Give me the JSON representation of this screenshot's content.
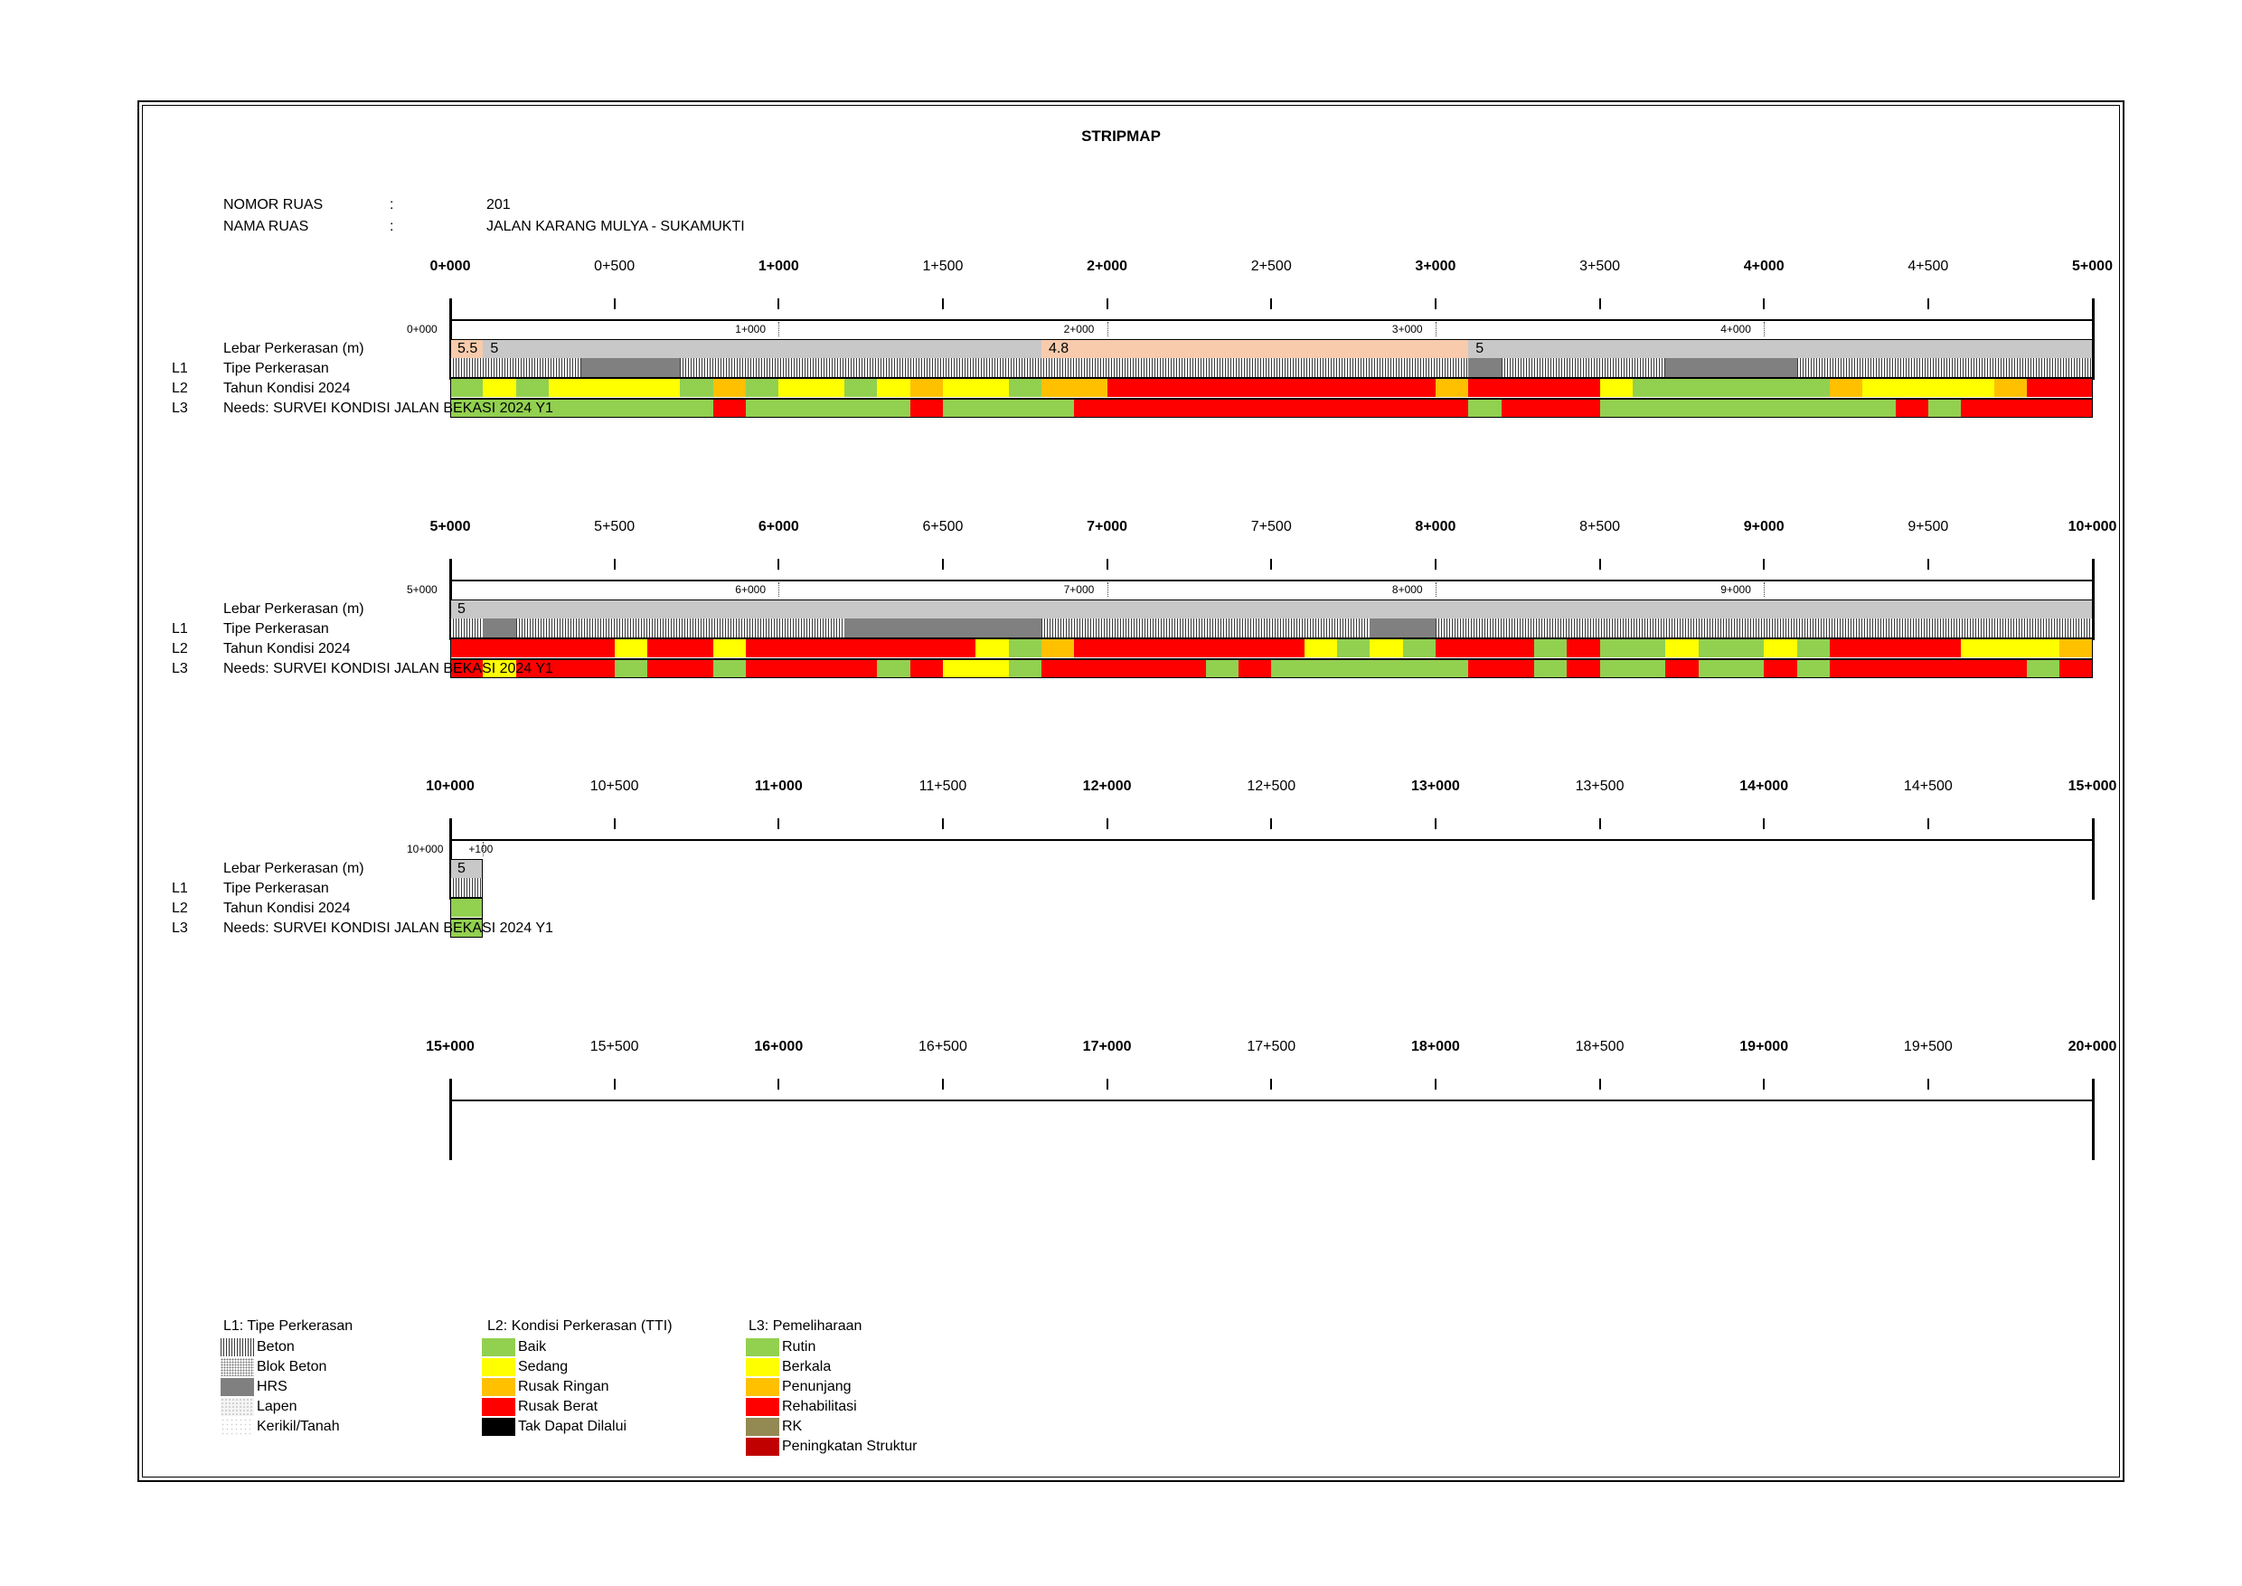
{
  "title": "STRIPMAP",
  "info": {
    "nomor_label": "NOMOR RUAS",
    "nomor_sep": ":",
    "nomor_value": "201",
    "nama_label": "NAMA RUAS",
    "nama_sep": ":",
    "nama_value": "JALAN KARANG MULYA - SUKAMUKTI"
  },
  "row_labels": {
    "lebar": "Lebar Perkerasan (m)",
    "l1_code": "L1",
    "l1": "Tipe Perkerasan",
    "l2_code": "L2",
    "l2": "Tahun Kondisi 2024",
    "l3_code": "L3",
    "l3": "Needs: SURVEI KONDISI JALAN BEKASI 2024 Y1"
  },
  "colors": {
    "baik": "#92d050",
    "sedang": "#ffff00",
    "rusak_ringan": "#ffc000",
    "rusak_berat": "#ff0000",
    "tak_dapat": "#000000",
    "rk": "#938953",
    "peningkatan": "#c00000",
    "width_grey": "#c8c8c8",
    "width_peach": "#f8cbad",
    "hrs": "#808080"
  },
  "chart_data": {
    "type": "stripmap",
    "unit": "m",
    "panels": [
      {
        "major_labels": [
          "0+000",
          "0+500",
          "1+000",
          "1+500",
          "2+000",
          "2+500",
          "3+000",
          "3+500",
          "4+000",
          "4+500",
          "5+000"
        ],
        "minor_labels": [
          {
            "km": 0,
            "text": "0+000"
          },
          {
            "km": 1,
            "text": "1+000"
          },
          {
            "km": 2,
            "text": "2+000"
          },
          {
            "km": 3,
            "text": "3+000"
          },
          {
            "km": 4,
            "text": "4+000"
          }
        ],
        "width": [
          {
            "s": 0,
            "e": 0.1,
            "v": "5.5",
            "c": "peach"
          },
          {
            "s": 0.1,
            "e": 1.8,
            "v": "5",
            "c": "grey"
          },
          {
            "s": 1.8,
            "e": 3.1,
            "v": "4.8",
            "c": "peach"
          },
          {
            "s": 3.1,
            "e": 5.0,
            "v": "5",
            "c": "grey"
          }
        ],
        "l1": [
          {
            "s": 0,
            "e": 0.4,
            "t": "beton"
          },
          {
            "s": 0.4,
            "e": 0.7,
            "t": "hrs"
          },
          {
            "s": 0.7,
            "e": 3.1,
            "t": "beton"
          },
          {
            "s": 3.1,
            "e": 3.2,
            "t": "hrs"
          },
          {
            "s": 3.2,
            "e": 3.7,
            "t": "beton"
          },
          {
            "s": 3.7,
            "e": 4.1,
            "t": "hrs"
          },
          {
            "s": 4.1,
            "e": 5.0,
            "t": "beton"
          }
        ],
        "l2": [
          {
            "s": 0,
            "e": 0.1,
            "c": "baik"
          },
          {
            "s": 0.1,
            "e": 0.2,
            "c": "sedang"
          },
          {
            "s": 0.2,
            "e": 0.3,
            "c": "baik"
          },
          {
            "s": 0.3,
            "e": 0.7,
            "c": "sedang"
          },
          {
            "s": 0.7,
            "e": 0.8,
            "c": "baik"
          },
          {
            "s": 0.8,
            "e": 0.9,
            "c": "rusak_ringan"
          },
          {
            "s": 0.9,
            "e": 1.0,
            "c": "baik"
          },
          {
            "s": 1.0,
            "e": 1.2,
            "c": "sedang"
          },
          {
            "s": 1.2,
            "e": 1.3,
            "c": "baik"
          },
          {
            "s": 1.3,
            "e": 1.4,
            "c": "sedang"
          },
          {
            "s": 1.4,
            "e": 1.5,
            "c": "rusak_ringan"
          },
          {
            "s": 1.5,
            "e": 1.7,
            "c": "sedang"
          },
          {
            "s": 1.7,
            "e": 1.8,
            "c": "baik"
          },
          {
            "s": 1.8,
            "e": 2.0,
            "c": "rusak_ringan"
          },
          {
            "s": 2.0,
            "e": 3.0,
            "c": "rusak_berat"
          },
          {
            "s": 3.0,
            "e": 3.1,
            "c": "rusak_ringan"
          },
          {
            "s": 3.1,
            "e": 3.5,
            "c": "rusak_berat"
          },
          {
            "s": 3.5,
            "e": 3.6,
            "c": "sedang"
          },
          {
            "s": 3.6,
            "e": 4.2,
            "c": "baik"
          },
          {
            "s": 4.2,
            "e": 4.3,
            "c": "rusak_ringan"
          },
          {
            "s": 4.3,
            "e": 4.7,
            "c": "sedang"
          },
          {
            "s": 4.7,
            "e": 4.8,
            "c": "rusak_ringan"
          },
          {
            "s": 4.8,
            "e": 5.0,
            "c": "rusak_berat"
          }
        ],
        "l3": [
          {
            "s": 0,
            "e": 0.8,
            "c": "baik"
          },
          {
            "s": 0.8,
            "e": 0.9,
            "c": "rusak_berat"
          },
          {
            "s": 0.9,
            "e": 1.4,
            "c": "baik"
          },
          {
            "s": 1.4,
            "e": 1.5,
            "c": "rusak_berat"
          },
          {
            "s": 1.5,
            "e": 1.9,
            "c": "baik"
          },
          {
            "s": 1.9,
            "e": 3.1,
            "c": "rusak_berat"
          },
          {
            "s": 3.1,
            "e": 3.2,
            "c": "baik"
          },
          {
            "s": 3.2,
            "e": 3.5,
            "c": "rusak_berat"
          },
          {
            "s": 3.5,
            "e": 4.4,
            "c": "baik"
          },
          {
            "s": 4.4,
            "e": 4.5,
            "c": "rusak_berat"
          },
          {
            "s": 4.5,
            "e": 4.6,
            "c": "baik"
          },
          {
            "s": 4.6,
            "e": 5.0,
            "c": "rusak_berat"
          }
        ]
      },
      {
        "major_labels": [
          "5+000",
          "5+500",
          "6+000",
          "6+500",
          "7+000",
          "7+500",
          "8+000",
          "8+500",
          "9+000",
          "9+500",
          "10+000"
        ],
        "minor_labels": [
          {
            "km": 0,
            "text": "5+000"
          },
          {
            "km": 1,
            "text": "6+000"
          },
          {
            "km": 2,
            "text": "7+000"
          },
          {
            "km": 3,
            "text": "8+000"
          },
          {
            "km": 4,
            "text": "9+000"
          }
        ],
        "width": [
          {
            "s": 0,
            "e": 5.0,
            "v": "5",
            "c": "grey"
          }
        ],
        "l1": [
          {
            "s": 0,
            "e": 0.1,
            "t": "beton"
          },
          {
            "s": 0.1,
            "e": 0.2,
            "t": "hrs"
          },
          {
            "s": 0.2,
            "e": 1.2,
            "t": "beton"
          },
          {
            "s": 1.2,
            "e": 1.8,
            "t": "hrs"
          },
          {
            "s": 1.8,
            "e": 2.8,
            "t": "beton"
          },
          {
            "s": 2.8,
            "e": 3.0,
            "t": "hrs"
          },
          {
            "s": 3.0,
            "e": 5.0,
            "t": "beton"
          }
        ],
        "l2": [
          {
            "s": 0,
            "e": 0.5,
            "c": "rusak_berat"
          },
          {
            "s": 0.5,
            "e": 0.6,
            "c": "sedang"
          },
          {
            "s": 0.6,
            "e": 0.8,
            "c": "rusak_berat"
          },
          {
            "s": 0.8,
            "e": 0.9,
            "c": "sedang"
          },
          {
            "s": 0.9,
            "e": 1.6,
            "c": "rusak_berat"
          },
          {
            "s": 1.6,
            "e": 1.7,
            "c": "sedang"
          },
          {
            "s": 1.7,
            "e": 1.8,
            "c": "baik"
          },
          {
            "s": 1.8,
            "e": 1.9,
            "c": "rusak_ringan"
          },
          {
            "s": 1.9,
            "e": 2.6,
            "c": "rusak_berat"
          },
          {
            "s": 2.6,
            "e": 2.7,
            "c": "sedang"
          },
          {
            "s": 2.7,
            "e": 2.8,
            "c": "baik"
          },
          {
            "s": 2.8,
            "e": 2.9,
            "c": "sedang"
          },
          {
            "s": 2.9,
            "e": 3.0,
            "c": "baik"
          },
          {
            "s": 3.0,
            "e": 3.3,
            "c": "rusak_berat"
          },
          {
            "s": 3.3,
            "e": 3.4,
            "c": "baik"
          },
          {
            "s": 3.4,
            "e": 3.5,
            "c": "rusak_berat"
          },
          {
            "s": 3.5,
            "e": 3.7,
            "c": "baik"
          },
          {
            "s": 3.7,
            "e": 3.8,
            "c": "sedang"
          },
          {
            "s": 3.8,
            "e": 4.0,
            "c": "baik"
          },
          {
            "s": 4.0,
            "e": 4.1,
            "c": "sedang"
          },
          {
            "s": 4.1,
            "e": 4.2,
            "c": "baik"
          },
          {
            "s": 4.2,
            "e": 4.6,
            "c": "rusak_berat"
          },
          {
            "s": 4.6,
            "e": 4.9,
            "c": "sedang"
          },
          {
            "s": 4.9,
            "e": 5.0,
            "c": "rusak_ringan"
          }
        ],
        "l3": [
          {
            "s": 0,
            "e": 0.1,
            "c": "rusak_berat"
          },
          {
            "s": 0.1,
            "e": 0.2,
            "c": "sedang"
          },
          {
            "s": 0.2,
            "e": 0.5,
            "c": "rusak_berat"
          },
          {
            "s": 0.5,
            "e": 0.6,
            "c": "baik"
          },
          {
            "s": 0.6,
            "e": 0.8,
            "c": "rusak_berat"
          },
          {
            "s": 0.8,
            "e": 0.9,
            "c": "baik"
          },
          {
            "s": 0.9,
            "e": 1.3,
            "c": "rusak_berat"
          },
          {
            "s": 1.3,
            "e": 1.4,
            "c": "baik"
          },
          {
            "s": 1.4,
            "e": 1.5,
            "c": "rusak_berat"
          },
          {
            "s": 1.5,
            "e": 1.7,
            "c": "sedang"
          },
          {
            "s": 1.7,
            "e": 1.8,
            "c": "baik"
          },
          {
            "s": 1.8,
            "e": 2.3,
            "c": "rusak_berat"
          },
          {
            "s": 2.3,
            "e": 2.4,
            "c": "baik"
          },
          {
            "s": 2.4,
            "e": 2.5,
            "c": "rusak_berat"
          },
          {
            "s": 2.5,
            "e": 3.1,
            "c": "baik"
          },
          {
            "s": 3.1,
            "e": 3.3,
            "c": "rusak_berat"
          },
          {
            "s": 3.3,
            "e": 3.4,
            "c": "baik"
          },
          {
            "s": 3.4,
            "e": 3.5,
            "c": "rusak_berat"
          },
          {
            "s": 3.5,
            "e": 3.7,
            "c": "baik"
          },
          {
            "s": 3.7,
            "e": 3.8,
            "c": "rusak_berat"
          },
          {
            "s": 3.8,
            "e": 4.0,
            "c": "baik"
          },
          {
            "s": 4.0,
            "e": 4.1,
            "c": "rusak_berat"
          },
          {
            "s": 4.1,
            "e": 4.2,
            "c": "baik"
          },
          {
            "s": 4.2,
            "e": 4.8,
            "c": "rusak_berat"
          },
          {
            "s": 4.8,
            "e": 4.9,
            "c": "baik"
          },
          {
            "s": 4.9,
            "e": 5.0,
            "c": "rusak_berat"
          }
        ]
      },
      {
        "major_labels": [
          "10+000",
          "10+500",
          "11+000",
          "11+500",
          "12+000",
          "12+500",
          "13+000",
          "13+500",
          "14+000",
          "14+500",
          "15+000"
        ],
        "minor_labels": [
          {
            "km": 0,
            "text": "10+000"
          },
          {
            "km": 0.1,
            "text": "+100"
          }
        ],
        "width": [
          {
            "s": 0,
            "e": 0.1,
            "v": "5",
            "c": "grey"
          }
        ],
        "l1": [
          {
            "s": 0,
            "e": 0.1,
            "t": "beton"
          }
        ],
        "l2": [
          {
            "s": 0,
            "e": 0.1,
            "c": "baik"
          }
        ],
        "l3": [
          {
            "s": 0,
            "e": 0.1,
            "c": "baik"
          }
        ]
      },
      {
        "major_labels": [
          "15+000",
          "15+500",
          "16+000",
          "16+500",
          "17+000",
          "17+500",
          "18+000",
          "18+500",
          "19+000",
          "19+500",
          "20+000"
        ],
        "minor_labels": [],
        "width": [],
        "l1": [],
        "l2": [],
        "l3": []
      }
    ]
  },
  "legend": {
    "l1": {
      "title": "L1: Tipe Perkerasan",
      "items": [
        {
          "label": "Beton",
          "pattern": "beton"
        },
        {
          "label": "Blok Beton",
          "pattern": "blok"
        },
        {
          "label": "HRS",
          "pattern": "hrs"
        },
        {
          "label": "Lapen",
          "pattern": "lapen"
        },
        {
          "label": "Kerikil/Tanah",
          "pattern": "kerikil"
        }
      ]
    },
    "l2": {
      "title": "L2: Kondisi Perkerasan (TTI)",
      "items": [
        {
          "label": "Baik",
          "color": "#92d050"
        },
        {
          "label": "Sedang",
          "color": "#ffff00"
        },
        {
          "label": "Rusak Ringan",
          "color": "#ffc000"
        },
        {
          "label": "Rusak Berat",
          "color": "#ff0000"
        },
        {
          "label": "Tak Dapat Dilalui",
          "color": "#000000"
        }
      ]
    },
    "l3": {
      "title": "L3: Pemeliharaan",
      "items": [
        {
          "label": "Rutin",
          "color": "#92d050"
        },
        {
          "label": "Berkala",
          "color": "#ffff00"
        },
        {
          "label": "Penunjang",
          "color": "#ffc000"
        },
        {
          "label": "Rehabilitasi",
          "color": "#ff0000"
        },
        {
          "label": "RK",
          "color": "#938953"
        },
        {
          "label": "Peningkatan Struktur",
          "color": "#c00000"
        }
      ]
    }
  }
}
